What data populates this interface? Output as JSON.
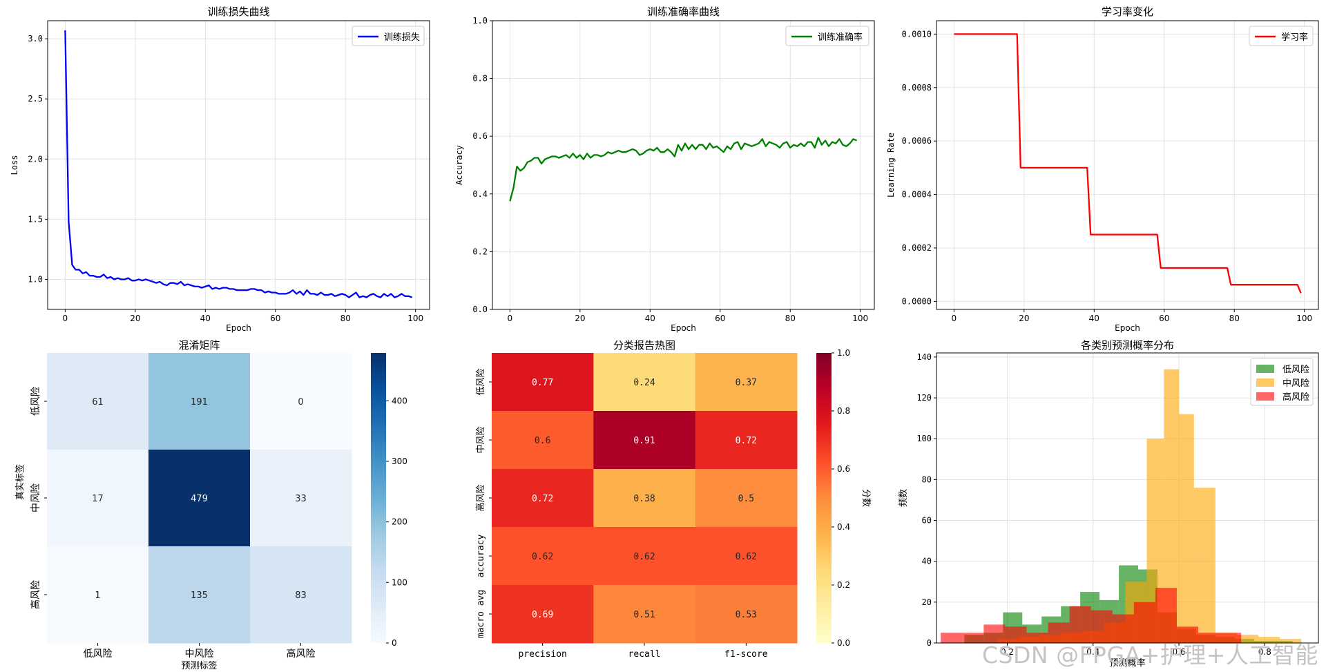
{
  "watermark": "CSDN @FPGA+护理+人工智能",
  "chart_data": [
    {
      "type": "line",
      "title": "训练损失曲线",
      "xlabel": "Epoch",
      "ylabel": "Loss",
      "xlim": [
        -5,
        104
      ],
      "ylim": [
        0.75,
        3.15
      ],
      "xticks": [
        0,
        20,
        40,
        60,
        80,
        100
      ],
      "xtick_labels": [
        "0",
        "20",
        "40",
        "60",
        "80",
        "100"
      ],
      "yticks": [
        1.0,
        1.5,
        2.0,
        2.5,
        3.0
      ],
      "ytick_labels": [
        "1.0",
        "1.5",
        "2.0",
        "2.5",
        "3.0"
      ],
      "legend": "top-right",
      "grid": true,
      "series": [
        {
          "name": "训练损失",
          "color": "#0000ff",
          "x": [
            0,
            1,
            2,
            3,
            4,
            5,
            6,
            7,
            8,
            9,
            10,
            11,
            12,
            13,
            14,
            15,
            16,
            17,
            18,
            19,
            20,
            21,
            22,
            23,
            24,
            25,
            26,
            27,
            28,
            29,
            30,
            31,
            32,
            33,
            34,
            35,
            36,
            37,
            38,
            39,
            40,
            41,
            42,
            43,
            44,
            45,
            46,
            47,
            48,
            49,
            50,
            51,
            52,
            53,
            54,
            55,
            56,
            57,
            58,
            59,
            60,
            61,
            62,
            63,
            64,
            65,
            66,
            67,
            68,
            69,
            70,
            71,
            72,
            73,
            74,
            75,
            76,
            77,
            78,
            79,
            80,
            81,
            82,
            83,
            84,
            85,
            86,
            87,
            88,
            89,
            90,
            91,
            92,
            93,
            94,
            95,
            96,
            97,
            98,
            99
          ],
          "values": [
            3.07,
            1.48,
            1.12,
            1.08,
            1.08,
            1.05,
            1.06,
            1.03,
            1.03,
            1.02,
            1.02,
            1.04,
            1.01,
            1.02,
            1.0,
            1.01,
            1.0,
            1.0,
            1.01,
            0.99,
            0.99,
            1.0,
            0.99,
            1.0,
            0.99,
            0.98,
            0.97,
            0.98,
            0.96,
            0.95,
            0.97,
            0.97,
            0.96,
            0.98,
            0.95,
            0.96,
            0.95,
            0.94,
            0.94,
            0.93,
            0.94,
            0.95,
            0.92,
            0.93,
            0.92,
            0.93,
            0.93,
            0.92,
            0.92,
            0.91,
            0.91,
            0.91,
            0.91,
            0.92,
            0.92,
            0.91,
            0.91,
            0.89,
            0.9,
            0.89,
            0.89,
            0.88,
            0.88,
            0.88,
            0.89,
            0.91,
            0.88,
            0.9,
            0.87,
            0.91,
            0.88,
            0.88,
            0.87,
            0.89,
            0.87,
            0.87,
            0.88,
            0.86,
            0.87,
            0.88,
            0.87,
            0.85,
            0.87,
            0.89,
            0.85,
            0.86,
            0.85,
            0.87,
            0.88,
            0.86,
            0.85,
            0.88,
            0.86,
            0.88,
            0.85,
            0.86,
            0.88,
            0.86,
            0.86,
            0.85
          ]
        }
      ]
    },
    {
      "type": "line",
      "title": "训练准确率曲线",
      "xlabel": "Epoch",
      "ylabel": "Accuracy",
      "xlim": [
        -5,
        104
      ],
      "ylim": [
        0,
        1.0
      ],
      "xticks": [
        0,
        20,
        40,
        60,
        80,
        100
      ],
      "xtick_labels": [
        "0",
        "20",
        "40",
        "60",
        "80",
        "100"
      ],
      "yticks": [
        0,
        0.2,
        0.4,
        0.6,
        0.8,
        1.0
      ],
      "ytick_labels": [
        "0.0",
        "0.2",
        "0.4",
        "0.6",
        "0.8",
        "1.0"
      ],
      "legend": "top-right",
      "grid": true,
      "series": [
        {
          "name": "训练准确率",
          "color": "#008000",
          "x": [
            0,
            1,
            2,
            3,
            4,
            5,
            6,
            7,
            8,
            9,
            10,
            11,
            12,
            13,
            14,
            15,
            16,
            17,
            18,
            19,
            20,
            21,
            22,
            23,
            24,
            25,
            26,
            27,
            28,
            29,
            30,
            31,
            32,
            33,
            34,
            35,
            36,
            37,
            38,
            39,
            40,
            41,
            42,
            43,
            44,
            45,
            46,
            47,
            48,
            49,
            50,
            51,
            52,
            53,
            54,
            55,
            56,
            57,
            58,
            59,
            60,
            61,
            62,
            63,
            64,
            65,
            66,
            67,
            68,
            69,
            70,
            71,
            72,
            73,
            74,
            75,
            76,
            77,
            78,
            79,
            80,
            81,
            82,
            83,
            84,
            85,
            86,
            87,
            88,
            89,
            90,
            91,
            92,
            93,
            94,
            95,
            96,
            97,
            98,
            99
          ],
          "values": [
            0.375,
            0.42,
            0.495,
            0.48,
            0.49,
            0.51,
            0.515,
            0.525,
            0.525,
            0.505,
            0.52,
            0.525,
            0.53,
            0.53,
            0.525,
            0.53,
            0.535,
            0.525,
            0.54,
            0.525,
            0.535,
            0.52,
            0.54,
            0.525,
            0.535,
            0.535,
            0.53,
            0.535,
            0.545,
            0.54,
            0.545,
            0.55,
            0.545,
            0.545,
            0.55,
            0.555,
            0.55,
            0.535,
            0.54,
            0.55,
            0.555,
            0.55,
            0.56,
            0.545,
            0.545,
            0.555,
            0.545,
            0.53,
            0.57,
            0.55,
            0.575,
            0.555,
            0.57,
            0.555,
            0.57,
            0.57,
            0.555,
            0.575,
            0.56,
            0.565,
            0.555,
            0.545,
            0.565,
            0.555,
            0.575,
            0.58,
            0.555,
            0.575,
            0.57,
            0.565,
            0.57,
            0.575,
            0.59,
            0.565,
            0.58,
            0.575,
            0.57,
            0.56,
            0.575,
            0.58,
            0.56,
            0.57,
            0.565,
            0.575,
            0.565,
            0.58,
            0.58,
            0.56,
            0.595,
            0.57,
            0.585,
            0.565,
            0.58,
            0.575,
            0.59,
            0.57,
            0.565,
            0.575,
            0.59,
            0.585
          ]
        }
      ]
    },
    {
      "type": "line",
      "title": "学习率变化",
      "xlabel": "Epoch",
      "ylabel": "Learning Rate",
      "xlim": [
        -5,
        104
      ],
      "ylim": [
        -3e-05,
        0.00105
      ],
      "xticks": [
        0,
        20,
        40,
        60,
        80,
        100
      ],
      "xtick_labels": [
        "0",
        "20",
        "40",
        "60",
        "80",
        "100"
      ],
      "yticks": [
        0,
        0.0002,
        0.0004,
        0.0006,
        0.0008,
        0.001
      ],
      "ytick_labels": [
        "0.0000",
        "0.0002",
        "0.0004",
        "0.0006",
        "0.0008",
        "0.0010"
      ],
      "legend": "top-right",
      "grid": true,
      "series": [
        {
          "name": "学习率",
          "color": "#ff0000",
          "x": [
            0,
            18,
            19,
            38,
            39,
            58,
            59,
            78,
            79,
            98,
            99
          ],
          "values": [
            0.001,
            0.001,
            0.0005,
            0.0005,
            0.00025,
            0.00025,
            0.000125,
            0.000125,
            6.25e-05,
            6.25e-05,
            3.125e-05
          ]
        }
      ]
    },
    {
      "type": "heatmap",
      "title": "混淆矩阵",
      "xlabel": "预测标签",
      "ylabel": "真实标签",
      "x_categories": [
        "低风险",
        "中风险",
        "高风险"
      ],
      "y_categories": [
        "低风险",
        "中风险",
        "高风险"
      ],
      "values": [
        [
          61,
          191,
          0
        ],
        [
          17,
          479,
          33
        ],
        [
          1,
          135,
          83
        ]
      ],
      "colormap": "Blues",
      "vmin": 0,
      "vmax": 479,
      "colorbar_ticks": [
        0,
        100,
        200,
        300,
        400
      ],
      "colorbar_tick_labels": [
        "0",
        "100",
        "200",
        "300",
        "400"
      ]
    },
    {
      "type": "heatmap",
      "title": "分类报告热图",
      "x_categories": [
        "precision",
        "recall",
        "f1-score"
      ],
      "y_categories": [
        "低风险",
        "中风险",
        "高风险",
        "accuracy",
        "macro avg"
      ],
      "values": [
        [
          0.77,
          0.24,
          0.37
        ],
        [
          0.6,
          0.91,
          0.72
        ],
        [
          0.72,
          0.38,
          0.5
        ],
        [
          0.62,
          0.62,
          0.62
        ],
        [
          0.69,
          0.51,
          0.53
        ]
      ],
      "cell_labels": [
        [
          "0.77",
          "0.24",
          "0.37"
        ],
        [
          "0.6",
          "0.91",
          "0.72"
        ],
        [
          "0.72",
          "0.38",
          "0.5"
        ],
        [
          "0.62",
          "0.62",
          "0.62"
        ],
        [
          "0.69",
          "0.51",
          "0.53"
        ]
      ],
      "colormap": "YlOrRd",
      "vmin": 0,
      "vmax": 1,
      "colorbar_label": "分数",
      "colorbar_ticks": [
        0,
        0.2,
        0.4,
        0.6,
        0.8,
        1.0
      ],
      "colorbar_tick_labels": [
        "0.0",
        "0.2",
        "0.4",
        "0.6",
        "0.8",
        "1.0"
      ]
    },
    {
      "type": "histogram",
      "title": "各类别预测概率分布",
      "xlabel": "预测概率",
      "ylabel": "频数",
      "xlim": [
        0.035,
        0.925
      ],
      "ylim": [
        0,
        142
      ],
      "xticks": [
        0.2,
        0.4,
        0.6,
        0.8
      ],
      "xtick_labels": [
        "0.2",
        "0.4",
        "0.6",
        "0.8"
      ],
      "yticks": [
        0,
        20,
        40,
        60,
        80,
        100,
        120,
        140
      ],
      "ytick_labels": [
        "0",
        "20",
        "40",
        "60",
        "80",
        "100",
        "120",
        "140"
      ],
      "legend": "top-right",
      "grid": true,
      "alpha": 0.6,
      "series": [
        {
          "name": "低风险",
          "color": "#008000",
          "bins": [
            [
              0.1,
              0.145
            ],
            [
              0.145,
              0.19
            ],
            [
              0.19,
              0.235
            ],
            [
              0.235,
              0.28
            ],
            [
              0.28,
              0.325
            ],
            [
              0.325,
              0.37
            ],
            [
              0.37,
              0.415
            ],
            [
              0.415,
              0.46
            ],
            [
              0.46,
              0.505
            ],
            [
              0.505,
              0.55
            ],
            [
              0.55,
              0.595
            ],
            [
              0.595,
              0.64
            ],
            [
              0.64,
              0.685
            ],
            [
              0.685,
              0.73
            ],
            [
              0.73,
              0.775
            ],
            [
              0.775,
              0.82
            ],
            [
              0.82,
              0.865
            ]
          ],
          "counts": [
            4,
            5,
            15,
            9,
            13,
            18,
            25,
            21,
            38,
            36,
            15,
            7,
            4,
            3,
            2,
            1,
            1
          ]
        },
        {
          "name": "中风险",
          "color": "#ffa500",
          "bins": [
            [
              0.175,
              0.225
            ],
            [
              0.225,
              0.275
            ],
            [
              0.275,
              0.325
            ],
            [
              0.325,
              0.375
            ],
            [
              0.375,
              0.425
            ],
            [
              0.425,
              0.475
            ],
            [
              0.475,
              0.525
            ],
            [
              0.525,
              0.565
            ],
            [
              0.565,
              0.6
            ],
            [
              0.6,
              0.635
            ],
            [
              0.635,
              0.685
            ],
            [
              0.685,
              0.735
            ],
            [
              0.735,
              0.785
            ],
            [
              0.785,
              0.835
            ],
            [
              0.835,
              0.885
            ]
          ],
          "counts": [
            2,
            3,
            4,
            5,
            6,
            10,
            30,
            100,
            134,
            112,
            76,
            5,
            4,
            3,
            2
          ]
        },
        {
          "name": "高风险",
          "color": "#ff0000",
          "bins": [
            [
              0.045,
              0.095
            ],
            [
              0.095,
              0.145
            ],
            [
              0.145,
              0.195
            ],
            [
              0.195,
              0.245
            ],
            [
              0.245,
              0.295
            ],
            [
              0.295,
              0.345
            ],
            [
              0.345,
              0.395
            ],
            [
              0.395,
              0.445
            ],
            [
              0.445,
              0.495
            ],
            [
              0.495,
              0.545
            ],
            [
              0.545,
              0.595
            ],
            [
              0.595,
              0.645
            ],
            [
              0.645,
              0.695
            ],
            [
              0.695,
              0.745
            ]
          ],
          "counts": [
            5,
            5,
            9,
            8,
            5,
            10,
            18,
            16,
            14,
            20,
            27,
            8,
            5,
            5
          ]
        }
      ]
    }
  ]
}
